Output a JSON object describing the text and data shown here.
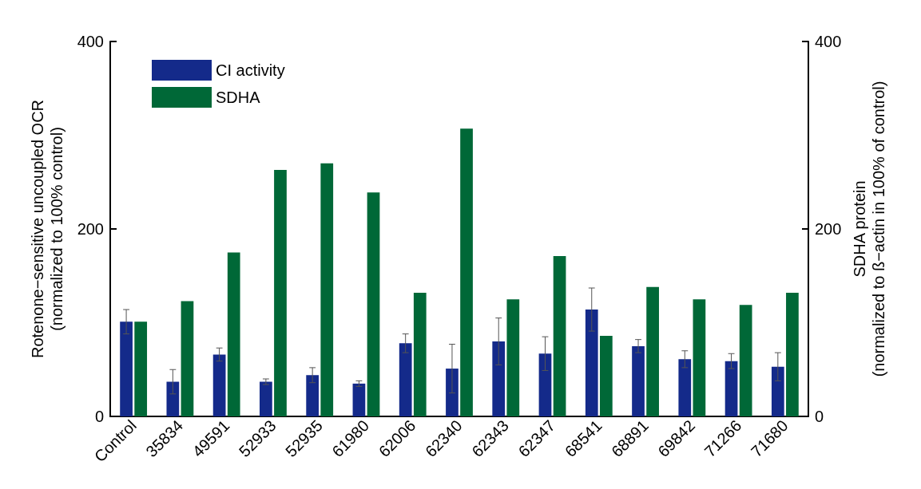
{
  "chart_data": {
    "type": "bar",
    "ylabel": "Rotenone−sensitive uncoupled OCR\n(normalized to 100% control)",
    "y2label": "SDHA protein\n(normalized to ß−actin in 100% of control)",
    "categories": [
      "Control",
      "35834",
      "49591",
      "52933",
      "52935",
      "61980",
      "62006",
      "62340",
      "62343",
      "62347",
      "68541",
      "68891",
      "69842",
      "71266",
      "71680"
    ],
    "series": [
      {
        "name": "CI activity",
        "color": "#142a8a",
        "values": [
          101,
          37,
          66,
          37,
          44,
          35,
          78,
          51,
          80,
          67,
          114,
          75,
          61,
          59,
          53
        ],
        "errors": [
          13,
          13,
          7,
          3,
          8,
          3,
          10,
          26,
          25,
          18,
          23,
          7,
          9,
          8,
          15
        ]
      },
      {
        "name": "SDHA",
        "color": "#006837",
        "axis": "y2",
        "values": [
          101,
          123,
          175,
          263,
          270,
          239,
          132,
          307,
          125,
          171,
          86,
          138,
          125,
          119,
          132
        ]
      }
    ],
    "ylim": [
      0,
      400
    ],
    "yticks": [
      0,
      200,
      400
    ],
    "y2lim": [
      0,
      400
    ],
    "y2ticks": [
      0,
      200,
      400
    ],
    "grid": false,
    "legend": "top left"
  }
}
